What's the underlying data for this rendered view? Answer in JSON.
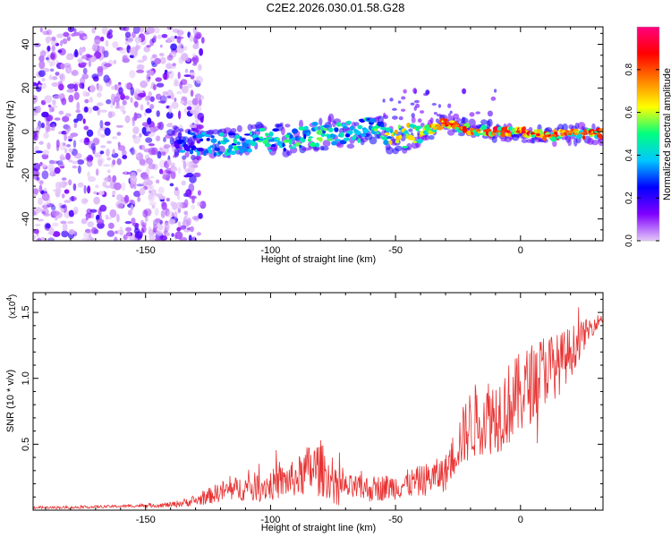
{
  "title": "C2E2.2026.030.01.58.G28",
  "chart_data": [
    {
      "type": "heatmap",
      "xlabel": "Height of straight line (km)",
      "ylabel": "Frequency (Hz)",
      "xlim": [
        -195,
        33
      ],
      "ylim": [
        -50,
        48
      ],
      "xticks": [
        -150,
        -100,
        -50,
        0
      ],
      "yticks": [
        -40,
        -20,
        0,
        20,
        40
      ],
      "colorbar": {
        "label": "Normalized spectral amplitude",
        "range": [
          0,
          1
        ],
        "ticks": [
          "0.0",
          "0.2",
          "0.4",
          "0.6",
          "0.8"
        ],
        "colormap": [
          "#e4c8f8",
          "#8000ff",
          "#0000ff",
          "#00c8ff",
          "#00ff80",
          "#ffff00",
          "#ff8000",
          "#ff0000",
          "#ff0080"
        ]
      },
      "ridge": {
        "x": [
          -140,
          -130,
          -120,
          -110,
          -100,
          -90,
          -80,
          -70,
          -60,
          -50,
          -40,
          -30,
          -20,
          -10,
          0,
          10,
          20,
          30
        ],
        "freq_hz": [
          -5,
          -5,
          -6,
          -4,
          -4,
          -3,
          -1,
          0,
          1,
          -3,
          -1,
          4,
          1,
          0,
          0,
          -2,
          -1,
          -1
        ],
        "amplitude": [
          0.3,
          0.4,
          0.45,
          0.5,
          0.5,
          0.55,
          0.55,
          0.5,
          0.5,
          0.7,
          0.75,
          0.85,
          0.9,
          0.95,
          0.95,
          0.9,
          0.85,
          0.85
        ]
      },
      "noise_region_x": [
        -195,
        -135
      ]
    },
    {
      "type": "line",
      "xlabel": "Height of straight line (km)",
      "ylabel": "SNR (10 * v/v)",
      "y_multiplier": "(x10",
      "y_multiplier_exp": "4",
      "y_multiplier_close": ")",
      "xlim": [
        -195,
        33
      ],
      "ylim": [
        0,
        1.65
      ],
      "xticks": [
        -150,
        -100,
        -50,
        0
      ],
      "yticks": [
        "0.5",
        "1.0",
        "1.5"
      ],
      "color": "#e83232",
      "series": {
        "x": [
          -195,
          -180,
          -160,
          -140,
          -130,
          -120,
          -110,
          -100,
          -90,
          -85,
          -80,
          -75,
          -70,
          -60,
          -50,
          -40,
          -30,
          -25,
          -20,
          -15,
          -10,
          -5,
          0,
          5,
          10,
          15,
          20,
          25,
          30,
          33
        ],
        "y": [
          0.02,
          0.02,
          0.03,
          0.04,
          0.07,
          0.14,
          0.17,
          0.19,
          0.24,
          0.3,
          0.32,
          0.2,
          0.17,
          0.16,
          0.18,
          0.22,
          0.28,
          0.5,
          0.65,
          0.72,
          0.72,
          0.8,
          0.88,
          0.98,
          1.08,
          1.1,
          1.2,
          1.32,
          1.42,
          1.46
        ],
        "spread": [
          0.01,
          0.01,
          0.01,
          0.02,
          0.04,
          0.08,
          0.1,
          0.12,
          0.14,
          0.2,
          0.22,
          0.12,
          0.1,
          0.1,
          0.1,
          0.12,
          0.14,
          0.2,
          0.28,
          0.3,
          0.3,
          0.32,
          0.32,
          0.3,
          0.28,
          0.24,
          0.2,
          0.12,
          0.06,
          0.04
        ]
      }
    }
  ]
}
